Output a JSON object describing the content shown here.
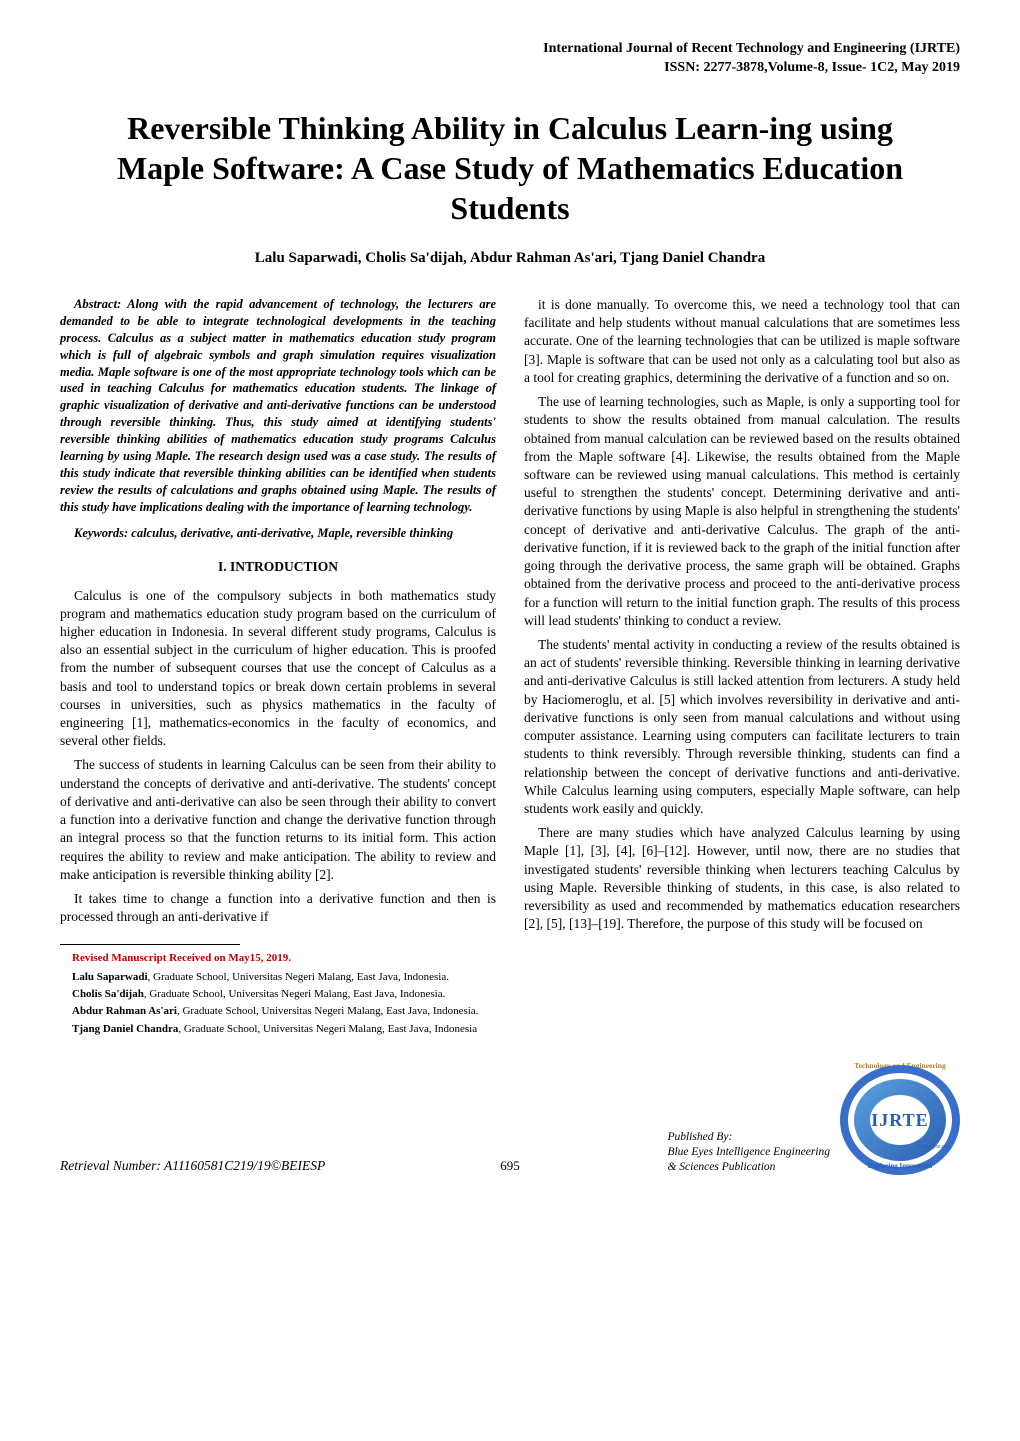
{
  "header": {
    "journal_line1": "International Journal of Recent Technology and Engineering (IJRTE)",
    "journal_line2": "ISSN: 2277-3878,Volume-8, Issue- 1C2, May 2019"
  },
  "title": "Reversible Thinking Ability in Calculus Learn-ing using Maple Software: A Case Study of Mathematics Education Students",
  "authors": "Lalu Saparwadi, Cholis Sa'dijah, Abdur Rahman As'ari, Tjang Daniel Chandra",
  "abstract": "Abstract: Along with the rapid advancement of technology, the lecturers are demanded to be able to integrate technological developments in the teaching process. Calculus as a subject matter in mathematics education study program which is full of algebraic symbols and graph simulation requires visualization media. Maple software is one of the most appropriate technology tools which can be used in teaching Calculus for mathematics education students. The linkage of graphic visualization of derivative and anti-derivative functions can be understood through reversible thinking. Thus, this study aimed at identifying students' reversible thinking abilities of mathematics education study programs Calculus learning by using Maple. The research design used was a case study. The results of this study indicate that reversible thinking abilities can be identified when students review the results of calculations and graphs obtained using Maple. The results of this study have implications dealing with the importance of learning technology.",
  "keywords": "Keywords: calculus, derivative, anti-derivative, Maple, reversible thinking",
  "section1_head": "I.      INTRODUCTION",
  "left_paras": [
    "Calculus is one of the compulsory subjects in both mathematics study program and mathematics education study program based on the curriculum of higher education in Indonesia. In several different study programs, Calculus is also an essential subject in the curriculum of higher education. This is proofed from the number of subsequent courses that use the concept of Calculus as a basis and tool to understand topics or break down certain problems in several courses in universities, such as physics mathematics in the faculty of engineering [1], mathematics-economics in the faculty of economics, and several other fields.",
    "The success of students in learning Calculus can be seen from their ability to understand the concepts of derivative and anti-derivative. The students' concept of derivative and anti-derivative can also be seen through their ability to convert a function into a derivative function and change the derivative function through an integral process so that the function returns to its initial form. This action requires the ability to review and make anticipation. The ability to review and make anticipation is reversible thinking ability [2].",
    "It takes time to change a function into a derivative function and then is processed through an anti-derivative if"
  ],
  "right_paras": [
    "it is done manually. To overcome this, we need a technology tool that can facilitate and help students without manual calculations that are sometimes less accurate. One of the learning technologies that can be utilized is maple software [3]. Maple is software that can be used not only as a calculating tool but also as a tool for creating graphics, determining the derivative of a function and so on.",
    "The use of learning technologies, such as Maple, is only a supporting tool for students to show the results obtained from manual calculation. The results obtained from manual calculation can be reviewed based on the results obtained from the Maple software [4]. Likewise, the results obtained from the Maple software can be reviewed using manual calculations. This method is certainly useful to strengthen the students' concept. Determining derivative and anti-derivative functions by using Maple is also helpful in strengthening the students' concept of derivative and anti-derivative Calculus. The graph of the anti-derivative function, if it is reviewed back to the graph of the initial function after going through the derivative process, the same graph will be obtained. Graphs obtained from the derivative process and proceed to the anti-derivative process for a function will return to the initial function graph. The results of this process will lead students' thinking to conduct a review.",
    "The students' mental activity in conducting a review of the results obtained is an act of students' reversible thinking. Reversible thinking in learning derivative and anti-derivative Calculus is still lacked attention from lecturers. A study held by Haciomeroglu, et al. [5] which involves reversibility in derivative and anti-derivative functions is only seen from manual calculations and without using computer assistance. Learning using computers can facilitate lecturers to train students to think reversibly. Through reversible thinking, students can find a relationship between the concept of derivative functions and anti-derivative. While Calculus learning using computers, especially Maple software, can help students work easily and quickly.",
    "There are many studies which have analyzed Calculus learning by using Maple [1], [3], [4], [6]–[12]. However, until now, there are no studies that investigated students' reversible thinking when lecturers teaching Calculus by using Maple. Reversible thinking of students, in this case, is also related to reversibility as used and recommended by mathematics education researchers [2], [5], [13]–[19]. Therefore, the purpose of this study will be focused on"
  ],
  "footnotes": {
    "revised": "Revised Manuscript Received on May15, 2019.",
    "items": [
      {
        "name": "Lalu Saparwadi",
        "affil": ", Graduate School, Universitas Negeri Malang, East Java, Indonesia."
      },
      {
        "name": "Cholis Sa'dijah",
        "affil": ", Graduate School, Universitas Negeri Malang, East Java, Indonesia."
      },
      {
        "name": "Abdur Rahman As'ari",
        "affil": ", Graduate School, Universitas Negeri Malang, East Java, Indonesia."
      },
      {
        "name": "Tjang Daniel Chandra",
        "affil": ", Graduate School, Universitas Negeri Malang, East Java, Indonesia"
      }
    ]
  },
  "footer": {
    "retrieval": "Retrieval Number: A11160581C219/19©BEIESP",
    "page": "695",
    "pub_line1": "Published By:",
    "pub_line2": "Blue Eyes Intelligence Engineering",
    "pub_line3": "& Sciences Publication",
    "logo_text": "IJRTE",
    "logo_arc_top": "Technology and Engineering",
    "logo_arc_bottom": "Exploring Innovation",
    "logo_url": "www.ijrte.org"
  }
}
